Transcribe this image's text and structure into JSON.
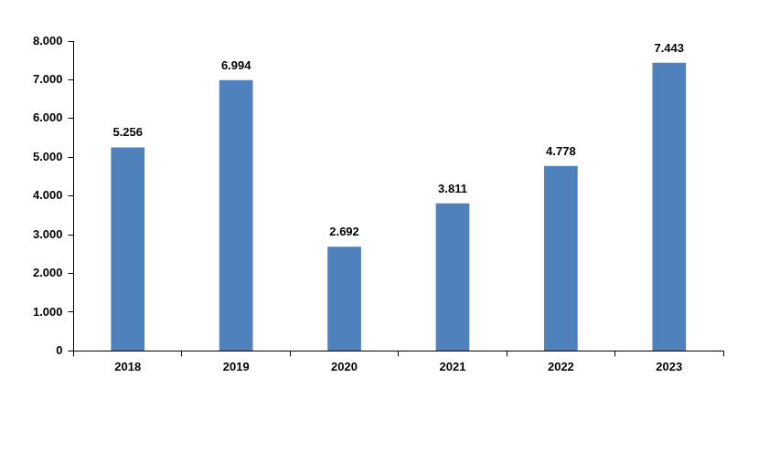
{
  "chart_data": {
    "type": "bar",
    "categories": [
      "2018",
      "2019",
      "2020",
      "2021",
      "2022",
      "2023"
    ],
    "values": [
      5256,
      6994,
      2692,
      3811,
      4778,
      7443
    ],
    "value_labels": [
      "5.256",
      "6.994",
      "2.692",
      "3.811",
      "4.778",
      "7.443"
    ],
    "color": "#4f81bd",
    "ylim": [
      0,
      8000
    ],
    "yticks": [
      0,
      {
        "value": 1000,
        "label": "1.000"
      },
      {
        "value": 2000,
        "label": "2.000"
      },
      {
        "value": 3000,
        "label": "3.000"
      },
      {
        "value": 4000,
        "label": "4.000"
      },
      {
        "value": 5000,
        "label": "5.000"
      },
      {
        "value": 6000,
        "label": "6.000"
      },
      {
        "value": 7000,
        "label": "7.000"
      },
      {
        "value": 8000,
        "label": "8.000"
      }
    ],
    "grid": false,
    "data_labels": true
  }
}
